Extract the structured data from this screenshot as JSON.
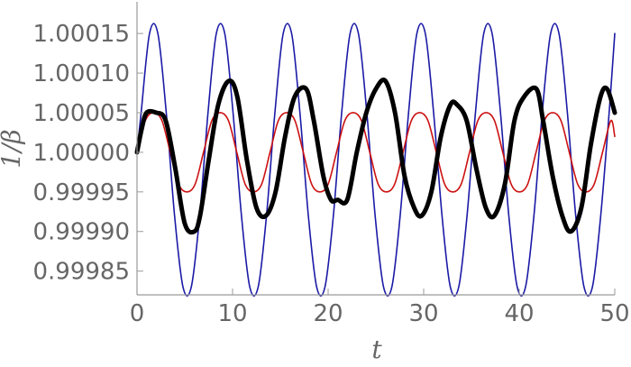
{
  "chart_data": {
    "type": "line",
    "title": "",
    "xlabel": "t",
    "ylabel": "1/β",
    "xlim": [
      0,
      50
    ],
    "ylim": [
      0.99982,
      1.00019
    ],
    "grid": false,
    "legend": "none",
    "x_ticks": [
      "0",
      "10",
      "20",
      "30",
      "40",
      "50"
    ],
    "y_ticks": [
      "0.99985",
      "0.99990",
      "0.99995",
      "1.00000",
      "1.00005",
      "1.00010",
      "1.00015"
    ],
    "series": [
      {
        "color": "#1a1aa6",
        "stroke": "thin",
        "x": [
          0,
          0.43,
          1.31,
          2.18,
          3.06,
          3.93,
          4.81,
          5.68,
          6.56,
          7.43,
          8.3,
          9.18,
          10.05,
          10.93,
          11.8,
          12.68,
          13.55,
          14.43,
          15.3,
          16.18,
          17.05,
          17.93,
          18.8,
          19.67,
          20.55,
          21.42,
          22.3,
          23.17,
          24.05,
          24.92,
          25.8,
          26.67,
          27.54,
          28.42,
          29.29,
          30.17,
          31.04,
          31.92,
          32.79,
          33.67,
          34.54,
          35.42,
          36.29,
          37.16,
          38.04,
          38.91,
          39.79,
          40.66,
          41.54,
          42.41,
          43.29,
          44.16,
          45.04,
          45.91,
          46.78,
          47.66,
          48.53,
          49.41,
          50
        ],
        "y": [
          1.0,
          1.00005,
          1.00015,
          1.00015,
          1.00005,
          0.99992,
          0.99983,
          0.99983,
          0.99992,
          1.00005,
          1.00015,
          1.00015,
          1.00005,
          0.99992,
          0.99983,
          0.99983,
          0.99992,
          1.00005,
          1.00015,
          1.00015,
          1.00005,
          0.99992,
          0.99983,
          0.99983,
          0.99992,
          1.00005,
          1.00015,
          1.00015,
          1.00005,
          0.99992,
          0.99983,
          0.99983,
          0.99992,
          1.00005,
          1.00015,
          1.00015,
          1.00005,
          0.99992,
          0.99983,
          0.99983,
          0.99992,
          1.00005,
          1.00015,
          1.00015,
          1.00005,
          0.99992,
          0.99983,
          0.99983,
          0.99992,
          1.00005,
          1.00015,
          1.00015,
          1.00005,
          0.99992,
          0.99983,
          0.99983,
          0.99992,
          1.00005,
          1.00015
        ]
      },
      {
        "color": "#cc1111",
        "stroke": "thin",
        "x": [
          0,
          0.87,
          1.74,
          2.61,
          3.48,
          4.35,
          5.22,
          6.09,
          6.96,
          7.83,
          8.7,
          9.57,
          10.44,
          11.31,
          12.18,
          13.05,
          13.92,
          14.79,
          15.66,
          16.53,
          17.4,
          18.27,
          19.14,
          20.01,
          20.88,
          21.75,
          22.62,
          23.49,
          24.36,
          25.23,
          26.1,
          26.97,
          27.84,
          28.71,
          29.58,
          30.45,
          31.32,
          32.19,
          33.06,
          33.93,
          34.8,
          35.67,
          36.54,
          37.41,
          38.28,
          39.15,
          40.02,
          40.89,
          41.76,
          42.63,
          43.5,
          44.37,
          45.24,
          46.11,
          46.98,
          47.85,
          48.72,
          49.59,
          50
        ],
        "y": [
          1.0,
          1.00004,
          1.00005,
          1.00004,
          1.0,
          0.99996,
          0.99995,
          0.99996,
          1.0,
          1.00004,
          1.00005,
          1.00004,
          1.0,
          0.99996,
          0.99995,
          0.99996,
          1.0,
          1.00004,
          1.00005,
          1.00004,
          1.0,
          0.99996,
          0.99995,
          0.99996,
          1.0,
          1.00004,
          1.00005,
          1.00004,
          1.0,
          0.99996,
          0.99995,
          0.99996,
          1.0,
          1.00004,
          1.00005,
          1.00004,
          1.0,
          0.99996,
          0.99995,
          0.99996,
          1.0,
          1.00004,
          1.00005,
          1.00004,
          1.0,
          0.99996,
          0.99995,
          0.99996,
          1.0,
          1.00004,
          1.00005,
          1.00004,
          1.0,
          0.99996,
          0.99995,
          0.99996,
          1.0,
          1.00004,
          1.00002
        ]
      },
      {
        "color": "#000000",
        "stroke": "thick",
        "x": [
          0,
          0.5,
          1.0,
          2.0,
          3.0,
          4.0,
          5.0,
          6.0,
          6.6,
          7.5,
          8.5,
          9.6,
          10.5,
          11.5,
          12.5,
          13.5,
          14.5,
          15.5,
          16.5,
          17.7,
          18.5,
          19.5,
          20.3,
          21.0,
          22.0,
          23.0,
          24.0,
          25.0,
          26.0,
          27.0,
          28.0,
          29.0,
          29.8,
          30.8,
          31.8,
          32.8,
          33.5,
          34.5,
          35.5,
          36.5,
          37.4,
          38.5,
          39.5,
          40.5,
          41.8,
          42.5,
          43.5,
          44.5,
          45.4,
          46.5,
          47.5,
          48.5,
          49.2,
          50
        ],
        "y": [
          1.0,
          1.00003,
          1.00005,
          1.00005,
          1.00004,
          0.99998,
          0.99991,
          0.9999,
          0.99992,
          0.99999,
          1.00006,
          1.00009,
          1.00007,
          0.99999,
          0.99993,
          0.99992,
          0.99995,
          1.00002,
          1.00007,
          1.00008,
          1.00004,
          0.99997,
          0.99994,
          0.99994,
          0.99994,
          1.0,
          1.00005,
          1.00008,
          1.00009,
          1.00005,
          0.99997,
          0.99993,
          0.99992,
          0.99995,
          1.00002,
          1.00006,
          1.00006,
          1.00004,
          0.99998,
          0.99993,
          0.99992,
          0.99996,
          1.00004,
          1.00007,
          1.00008,
          1.00004,
          0.99997,
          0.99992,
          0.9999,
          0.99993,
          1.00001,
          1.00007,
          1.00008,
          1.00005
        ]
      }
    ]
  }
}
